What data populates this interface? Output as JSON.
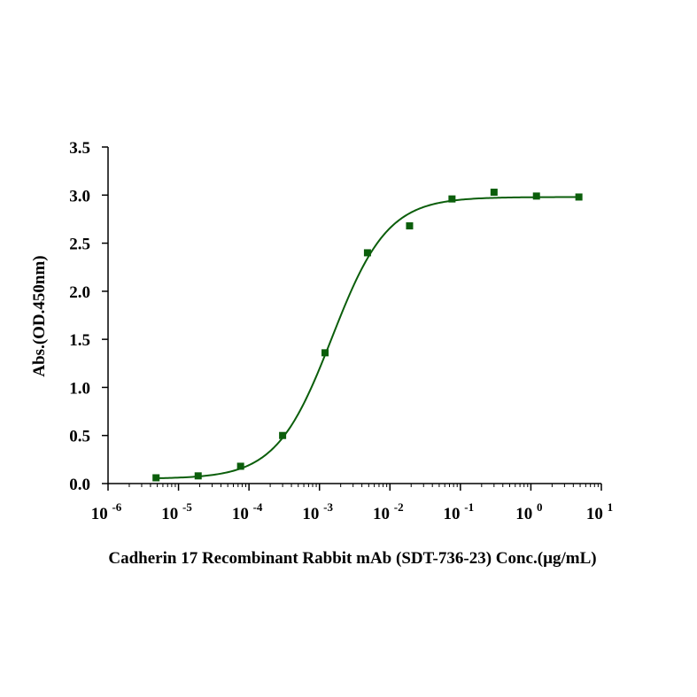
{
  "chart_data": {
    "type": "scatter",
    "xlabel": "Cadherin 17 Recombinant Rabbit mAb (SDT-736-23) Conc.(µg/mL)",
    "ylabel": "Abs.(OD.450nm)",
    "x_scale": "log",
    "xlim": [
      1e-06,
      10
    ],
    "ylim": [
      0,
      3.5
    ],
    "x_ticks": [
      {
        "base": "10",
        "exp": "-6"
      },
      {
        "base": "10",
        "exp": "-5"
      },
      {
        "base": "10",
        "exp": "-4"
      },
      {
        "base": "10",
        "exp": "-3"
      },
      {
        "base": "10",
        "exp": "-2"
      },
      {
        "base": "10",
        "exp": "-1"
      },
      {
        "base": "10",
        "exp": "0"
      },
      {
        "base": "10",
        "exp": "1"
      }
    ],
    "y_ticks": [
      "0.0",
      "0.5",
      "1.0",
      "1.5",
      "2.0",
      "2.5",
      "3.0",
      "3.5"
    ],
    "grid": false,
    "legend": "none",
    "series": [
      {
        "points": [
          {
            "x": 4.8e-06,
            "y": 0.06
          },
          {
            "x": 1.9e-05,
            "y": 0.08
          },
          {
            "x": 7.6e-05,
            "y": 0.18
          },
          {
            "x": 0.0003,
            "y": 0.5
          },
          {
            "x": 0.0012,
            "y": 1.36
          },
          {
            "x": 0.0048,
            "y": 2.4
          },
          {
            "x": 0.019,
            "y": 2.68
          },
          {
            "x": 0.076,
            "y": 2.96
          },
          {
            "x": 0.3,
            "y": 3.03
          },
          {
            "x": 1.2,
            "y": 2.99
          },
          {
            "x": 4.8,
            "y": 2.98
          }
        ],
        "fit": {
          "model": "4PL",
          "bottom": 0.05,
          "top": 2.98,
          "ec50": 0.0015,
          "hill": 1.1
        }
      }
    ],
    "colors": {
      "marker": "#0b5e0b",
      "curve": "#0b5e0b",
      "axis": "#000000"
    }
  }
}
